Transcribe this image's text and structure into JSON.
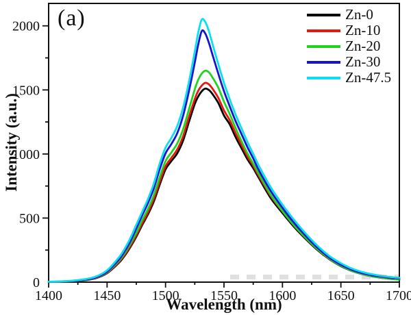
{
  "figure": {
    "panel_label": "(a)",
    "background_color": "#ffffff",
    "frame_color": "#111111",
    "tick_label_color": "#111111"
  },
  "chart_data": {
    "type": "line",
    "title": "",
    "xlabel": "Wavelength (nm)",
    "ylabel": "Intensity (a.u.)",
    "xlim": [
      1400,
      1700
    ],
    "ylim": [
      0,
      2175
    ],
    "xticks": [
      1400,
      1450,
      1500,
      1550,
      1600,
      1650,
      1700
    ],
    "xminorticks": [
      1425,
      1475,
      1525,
      1575,
      1625,
      1675
    ],
    "yticks": [
      0,
      500,
      1000,
      1500,
      2000
    ],
    "yminorticks": [
      250,
      750,
      1250,
      1750
    ],
    "grid": false,
    "legend_position": "top-right",
    "x": [
      1400,
      1410,
      1420,
      1430,
      1440,
      1450,
      1460,
      1465,
      1470,
      1475,
      1480,
      1485,
      1490,
      1495,
      1500,
      1505,
      1510,
      1515,
      1520,
      1525,
      1528,
      1531,
      1534,
      1537,
      1540,
      1545,
      1550,
      1555,
      1560,
      1565,
      1570,
      1575,
      1580,
      1590,
      1600,
      1610,
      1620,
      1630,
      1640,
      1650,
      1660,
      1670,
      1680,
      1690,
      1700
    ],
    "series": [
      {
        "name": "Zn-0",
        "color": "#000000",
        "peak_nm": 1534,
        "peak_intensity": 1510,
        "values": [
          2,
          4,
          7,
          14,
          30,
          70,
          150,
          205,
          275,
          355,
          445,
          530,
          630,
          760,
          880,
          945,
          1005,
          1105,
          1250,
          1390,
          1450,
          1490,
          1510,
          1500,
          1470,
          1400,
          1300,
          1230,
          1130,
          1045,
          960,
          890,
          810,
          655,
          540,
          430,
          335,
          250,
          180,
          125,
          85,
          58,
          40,
          28,
          20
        ]
      },
      {
        "name": "Zn-10",
        "color": "#e8170e",
        "peak_nm": 1534,
        "peak_intensity": 1555,
        "values": [
          2,
          4,
          8,
          15,
          32,
          73,
          156,
          212,
          284,
          366,
          458,
          546,
          650,
          782,
          905,
          970,
          1035,
          1138,
          1288,
          1428,
          1494,
          1534,
          1555,
          1544,
          1512,
          1440,
          1340,
          1262,
          1160,
          1070,
          982,
          908,
          825,
          672,
          552,
          440,
          342,
          255,
          183,
          128,
          87,
          60,
          41,
          29,
          21
        ]
      },
      {
        "name": "Zn-20",
        "color": "#1fd41f",
        "peak_nm": 1534,
        "peak_intensity": 1650,
        "values": [
          2,
          4,
          8,
          16,
          34,
          77,
          164,
          224,
          300,
          386,
          482,
          572,
          680,
          818,
          945,
          1012,
          1082,
          1192,
          1348,
          1504,
          1580,
          1628,
          1650,
          1638,
          1600,
          1520,
          1408,
          1310,
          1200,
          1100,
          1005,
          925,
          840,
          680,
          555,
          442,
          344,
          256,
          184,
          128,
          86,
          59,
          40,
          28,
          20
        ]
      },
      {
        "name": "Zn-30",
        "color": "#1515cf",
        "peak_nm": 1531,
        "peak_intensity": 1960,
        "values": [
          2,
          5,
          9,
          18,
          36,
          82,
          175,
          240,
          320,
          420,
          520,
          618,
          732,
          880,
          1005,
          1078,
          1162,
          1298,
          1490,
          1712,
          1856,
          1960,
          1940,
          1870,
          1780,
          1630,
          1490,
          1370,
          1255,
          1155,
          1055,
          965,
          870,
          710,
          580,
          462,
          360,
          268,
          192,
          136,
          94,
          66,
          48,
          36,
          28
        ]
      },
      {
        "name": "Zn-47.5",
        "color": "#0adef0",
        "peak_nm": 1532,
        "peak_intensity": 2050,
        "values": [
          3,
          6,
          11,
          22,
          42,
          92,
          192,
          260,
          345,
          448,
          548,
          650,
          770,
          925,
          1050,
          1126,
          1218,
          1362,
          1562,
          1798,
          1950,
          2050,
          2030,
          1962,
          1865,
          1705,
          1555,
          1425,
          1305,
          1200,
          1095,
          1000,
          905,
          740,
          605,
          485,
          378,
          284,
          205,
          148,
          104,
          75,
          56,
          43,
          34
        ]
      }
    ]
  }
}
